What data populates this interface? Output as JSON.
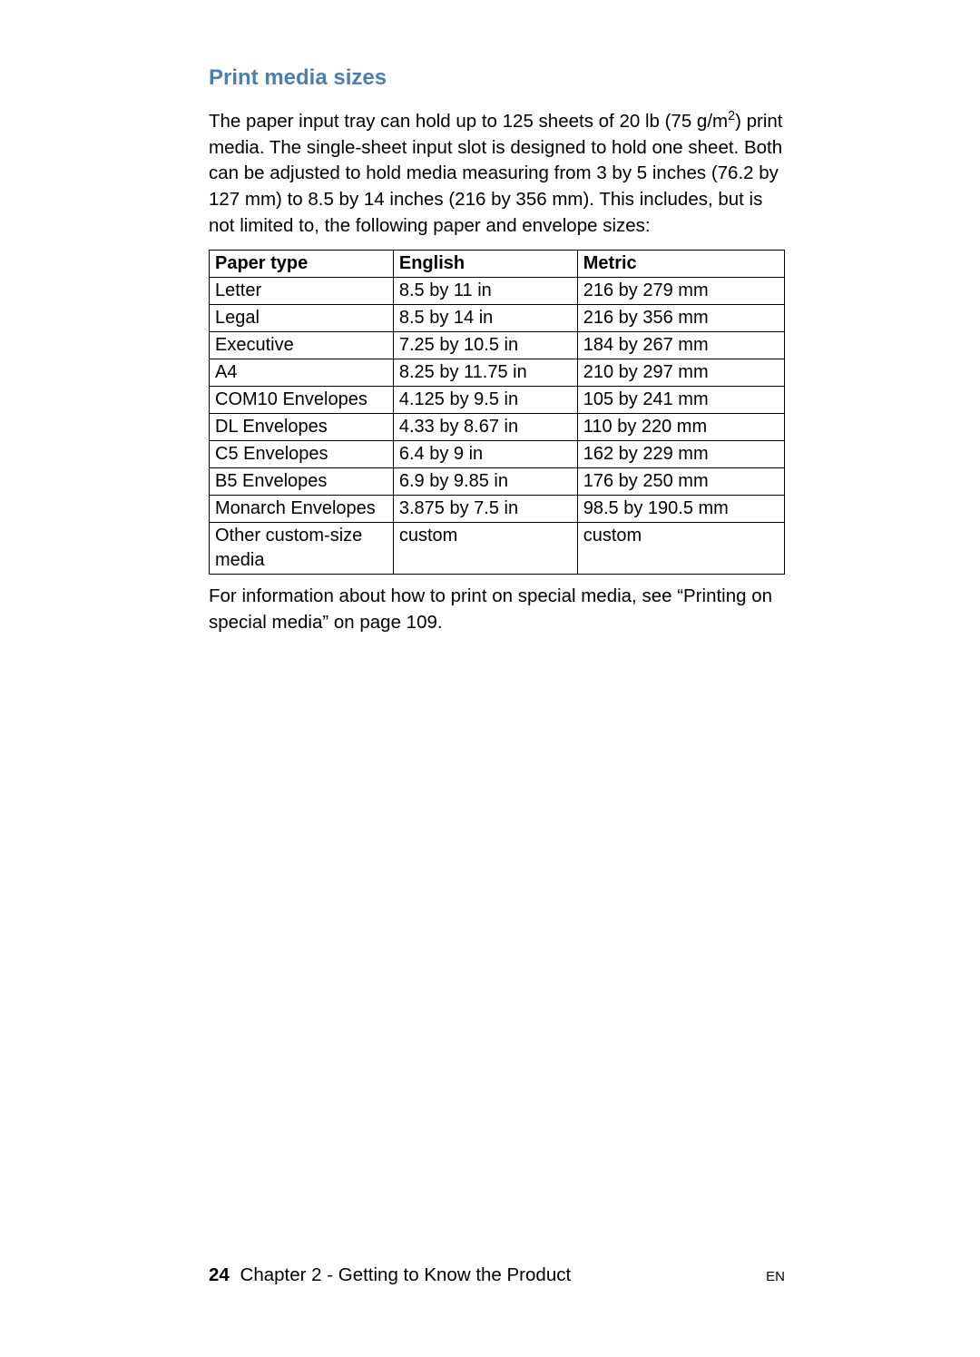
{
  "heading": "Print media sizes",
  "heading_color": "#4a7fb0",
  "intro_html": "The paper input tray can hold up to 125 sheets of 20 lb (75 g/m<sup>2</sup>) print media. The single-sheet input slot is designed to hold one sheet. Both can be adjusted to hold media measuring from 3 by 5 inches (76.2 by 127 mm) to 8.5 by 14 inches (216 by 356 mm). This includes, but is not limited to, the following paper and envelope sizes:",
  "table": {
    "columns": [
      "Paper type",
      "English",
      "Metric"
    ],
    "rows": [
      [
        "Letter",
        "8.5 by 11 in",
        "216 by 279 mm"
      ],
      [
        "Legal",
        "8.5 by 14 in",
        "216 by 356 mm"
      ],
      [
        "Executive",
        "7.25 by 10.5 in",
        "184 by 267 mm"
      ],
      [
        "A4",
        "8.25 by 11.75 in",
        "210 by 297 mm"
      ],
      [
        "COM10 Envelopes",
        "4.125 by 9.5 in",
        "105 by 241 mm"
      ],
      [
        "DL Envelopes",
        "4.33 by 8.67 in",
        "110 by 220 mm"
      ],
      [
        "C5 Envelopes",
        "6.4 by 9 in",
        "162 by 229 mm"
      ],
      [
        "B5 Envelopes",
        "6.9 by 9.85 in",
        "176 by 250 mm"
      ],
      [
        "Monarch Envelopes",
        "3.875 by 7.5 in",
        "98.5 by 190.5 mm"
      ],
      [
        "Other custom-size media",
        "custom",
        "custom"
      ]
    ],
    "border_color": "#000000",
    "header_fontweight": "bold",
    "cell_fontsize": 20
  },
  "outro": "For information about how to print on special media, see “Printing on special media” on page 109.",
  "footer": {
    "page_number": "24",
    "chapter_text": "Chapter 2 - Getting to Know the Product",
    "lang_code": "EN"
  }
}
